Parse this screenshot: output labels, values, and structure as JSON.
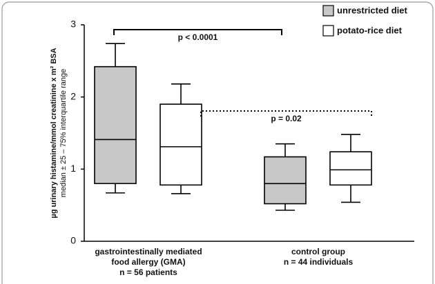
{
  "chart_data": {
    "type": "box",
    "ylabel": [
      "µg urinary histamine/mmol creatinine x m² BSA",
      "median ± 25 – 75% interquartile range"
    ],
    "categories": [
      [
        "gastrointestinally mediated",
        "food allergy (GMA)",
        "n = 56 patients"
      ],
      [
        "control group",
        "n = 44 individuals"
      ]
    ],
    "ylim": [
      0,
      3
    ],
    "yticks": [
      0,
      1,
      2,
      3
    ],
    "legend": "upper right",
    "series": [
      {
        "name": "unrestricted diet",
        "color": "#c8c8c8",
        "boxes": [
          {
            "whislo": 0.67,
            "q1": 0.8,
            "med": 1.41,
            "q3": 2.42,
            "whishi": 2.74
          },
          {
            "whislo": 0.43,
            "q1": 0.52,
            "med": 0.8,
            "q3": 1.17,
            "whishi": 1.35
          }
        ]
      },
      {
        "name": "potato-rice diet",
        "color": "#ffffff",
        "boxes": [
          {
            "whislo": 0.66,
            "q1": 0.78,
            "med": 1.31,
            "q3": 1.9,
            "whishi": 2.18
          },
          {
            "whislo": 0.54,
            "q1": 0.78,
            "med": 0.99,
            "q3": 1.24,
            "whishi": 1.48
          }
        ]
      }
    ],
    "annotations": [
      {
        "text": "p < 0.0001",
        "line": "solid"
      },
      {
        "text": "p = 0.02",
        "line": "dotted"
      }
    ]
  }
}
